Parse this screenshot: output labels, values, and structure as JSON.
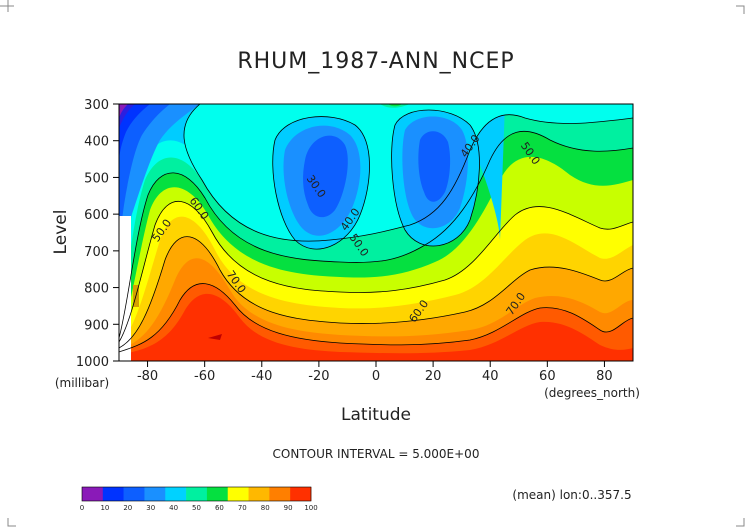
{
  "chart_data": {
    "type": "contour",
    "title": "RHUM_1987-ANN_NCEP",
    "xlabel": "Latitude",
    "x_unit": "(degrees_north)",
    "ylabel": "Level",
    "y_unit": "(millibar)",
    "xlim": [
      -90,
      90
    ],
    "ylim": [
      1000,
      300
    ],
    "x_ticks": [
      "-80",
      "-60",
      "-40",
      "-20",
      "0",
      "20",
      "40",
      "60",
      "80"
    ],
    "y_ticks": [
      "300",
      "400",
      "500",
      "600",
      "700",
      "800",
      "900",
      "1000"
    ],
    "contour_interval_text": "CONTOUR INTERVAL = 5.000E+00",
    "mean_note": "(mean) lon:0..357.5",
    "contour_labels": [
      {
        "text": "30.0",
        "lat": -22,
        "level": 530
      },
      {
        "text": "40.0",
        "lat": -8,
        "level": 620
      },
      {
        "text": "50.0",
        "lat": -7,
        "level": 690
      },
      {
        "text": "40.0",
        "lat": 34,
        "level": 420
      },
      {
        "text": "50.0",
        "lat": 53,
        "level": 440
      },
      {
        "text": "50.0",
        "lat": -74,
        "level": 650
      },
      {
        "text": "60.0",
        "lat": -63,
        "level": 590
      },
      {
        "text": "60.0",
        "lat": 16,
        "level": 870
      },
      {
        "text": "70.0",
        "lat": -50,
        "level": 790
      },
      {
        "text": "70.0",
        "lat": 50,
        "level": 850
      }
    ],
    "colorbar": {
      "ticks": [
        "0",
        "10",
        "20",
        "30",
        "40",
        "50",
        "60",
        "70",
        "80",
        "90",
        "100"
      ],
      "colors": [
        "#8a1ab8",
        "#0033ff",
        "#0d5fff",
        "#1a90ff",
        "#00d2ff",
        "#00f0a0",
        "#05e040",
        "#ffff00",
        "#ffb800",
        "#ff7f00",
        "#ff3000"
      ]
    },
    "palette": {
      "c25": "#0033ff",
      "c30": "#0d5fff",
      "c35": "#1a90ff",
      "c40": "#00ccff",
      "c45": "#00ffee",
      "c50": "#00f0a0",
      "c55": "#05e040",
      "c60": "#c8ff00",
      "c65": "#ffff00",
      "c70": "#ffd400",
      "c75": "#ffa800",
      "c80": "#ff8a00",
      "c85": "#ff5a00",
      "c90": "#ff3000"
    }
  }
}
